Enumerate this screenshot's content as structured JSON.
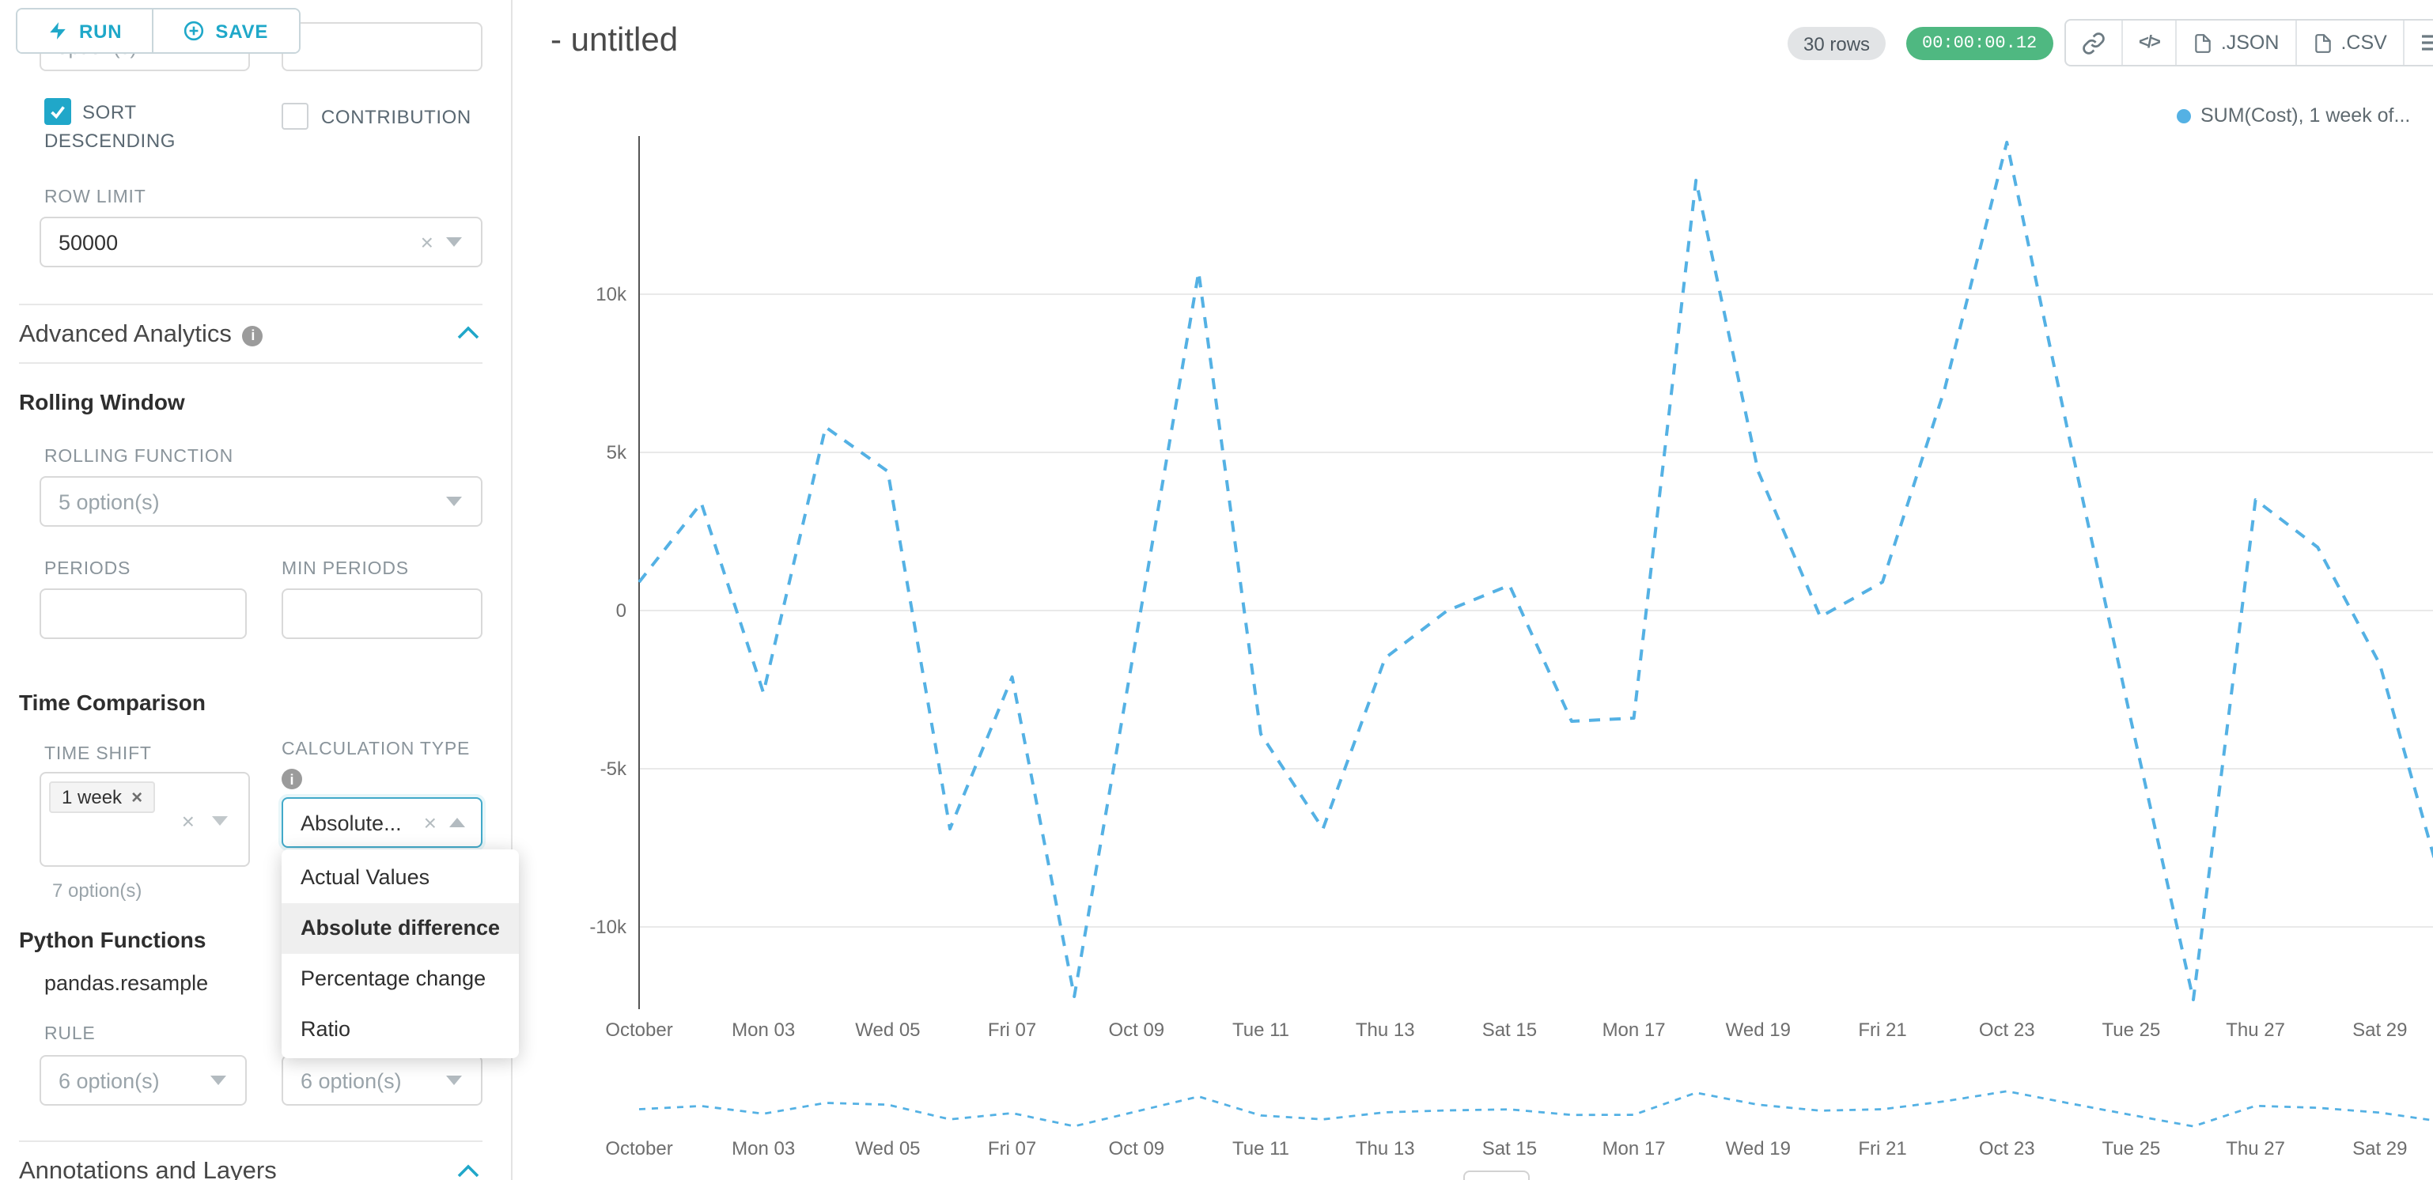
{
  "glyphs": {
    "clear": "×"
  },
  "colors": {
    "primary": "#20A7C9",
    "line": "#54B1E4",
    "timer_bg": "#4FB881"
  },
  "sidebar": {
    "run_label": "RUN",
    "save_label": "SAVE",
    "top_partial": {
      "left_placeholder": "option(s)"
    },
    "sort_descending_line1": "SORT",
    "sort_descending_line2": "DESCENDING",
    "contribution_label": "CONTRIBUTION",
    "row_limit_label": "ROW LIMIT",
    "row_limit_value": "50000",
    "advanced_analytics_title": "Advanced Analytics",
    "rolling_window_title": "Rolling Window",
    "rolling_function_label": "ROLLING FUNCTION",
    "rolling_function_placeholder": "5 option(s)",
    "periods_label": "PERIODS",
    "min_periods_label": "MIN PERIODS",
    "time_comparison_title": "Time Comparison",
    "time_shift_label": "TIME SHIFT",
    "time_shift_tag": "1 week",
    "time_shift_helper": "7 option(s)",
    "calculation_type_label": "CALCULATION TYPE",
    "calculation_type_value": "Absolute...",
    "calculation_dropdown": {
      "options": [
        "Actual Values",
        "Absolute difference",
        "Percentage change",
        "Ratio"
      ],
      "selected": "Absolute difference"
    },
    "python_functions_title": "Python Functions",
    "python_function_item": "pandas.resample",
    "rule_label": "RULE",
    "rule_placeholder": "6 option(s)",
    "rule_placeholder_2": "6 option(s)",
    "annotations_title": "Annotations and Layers"
  },
  "header": {
    "title": "- untitled",
    "rows_badge": "30 rows",
    "timer_badge": "00:00:00.12",
    "code_glyph": "</>",
    "json_label": ".JSON",
    "csv_label": ".CSV"
  },
  "chart_data": {
    "type": "line",
    "title": "",
    "legend": [
      "SUM(Cost), 1 week of..."
    ],
    "legend_position": "top-right",
    "grid": "horizontal-only",
    "x": [
      "Oct 01",
      "Oct 02",
      "Oct 03",
      "Oct 04",
      "Oct 05",
      "Oct 06",
      "Oct 07",
      "Oct 08",
      "Oct 09",
      "Oct 10",
      "Oct 11",
      "Oct 12",
      "Oct 13",
      "Oct 14",
      "Oct 15",
      "Oct 16",
      "Oct 17",
      "Oct 18",
      "Oct 19",
      "Oct 20",
      "Oct 21",
      "Oct 22",
      "Oct 23",
      "Oct 24",
      "Oct 25",
      "Oct 26",
      "Oct 27",
      "Oct 28",
      "Oct 29",
      "Oct 30"
    ],
    "x_tick_labels": [
      "October",
      "Mon 03",
      "Wed 05",
      "Fri 07",
      "Oct 09",
      "Tue 11",
      "Thu 13",
      "Sat 15",
      "Mon 17",
      "Wed 19",
      "Fri 21",
      "Oct 23",
      "Tue 25",
      "Thu 27",
      "Sat 29"
    ],
    "y_ticks": [
      "10k",
      "5k",
      "0",
      "-5k",
      "-10k"
    ],
    "y_tick_values": [
      10000,
      5000,
      0,
      -5000,
      -10000
    ],
    "ylim": [
      -13000,
      15200
    ],
    "series": [
      {
        "name": "SUM(Cost), 1 week of...",
        "style": "dashed",
        "color": "#54B1E4",
        "values": [
          900,
          3400,
          -2600,
          5800,
          4400,
          -6900,
          -2100,
          -12200,
          -800,
          10700,
          -3900,
          -6900,
          -1500,
          0,
          800,
          -3500,
          -3400,
          13600,
          4400,
          -200,
          900,
          7000,
          14800,
          5500,
          -3500,
          -12300,
          3500,
          2000,
          -1700,
          -8700
        ]
      }
    ],
    "mini_map": true
  }
}
